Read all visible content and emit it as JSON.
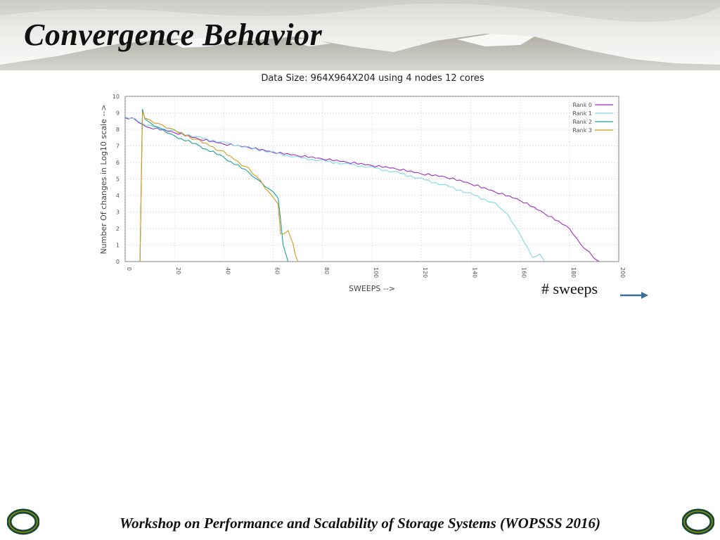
{
  "slide": {
    "title": "Convergence Behavior",
    "footer": "Workshop on Performance and Scalability of Storage Systems (WOPSSS 2016)",
    "sweeps_note": "# sweeps",
    "logo_letter": "O"
  },
  "colors": {
    "accent_green": "#154733",
    "arrow": "#3b6e9a"
  },
  "chart_data": {
    "type": "line",
    "title": "Data Size: 964X964X204 using 4 nodes 12 cores",
    "xlabel": "SWEEPS -->",
    "ylabel": "Number Of changes in Log10 scale -->",
    "xlim": [
      0,
      200
    ],
    "ylim": [
      0,
      10
    ],
    "xticks": [
      "0",
      "20",
      "40",
      "60",
      "80",
      "100",
      "120",
      "140",
      "160",
      "180",
      "200"
    ],
    "yticks": [
      "0",
      "1",
      "2",
      "3",
      "4",
      "5",
      "6",
      "7",
      "8",
      "9",
      "10"
    ],
    "grid": true,
    "legend_position": "top-right",
    "series": [
      {
        "name": "Rank 0",
        "color": "#9a2fc0",
        "x": [
          0,
          4,
          7,
          10,
          20,
          30,
          40,
          50,
          60,
          70,
          80,
          90,
          100,
          110,
          120,
          130,
          140,
          150,
          160,
          170,
          180,
          183,
          186,
          188,
          190,
          192
        ],
        "y": [
          8.7,
          8.6,
          8.3,
          8.1,
          7.8,
          7.4,
          7.1,
          6.9,
          6.6,
          6.4,
          6.2,
          6.0,
          5.8,
          5.6,
          5.3,
          5.1,
          4.7,
          4.2,
          3.7,
          2.9,
          2.0,
          1.4,
          0.8,
          0.6,
          0.2,
          0
        ]
      },
      {
        "name": "Rank 1",
        "color": "#7fd8e6",
        "x": [
          0,
          4,
          7,
          10,
          20,
          30,
          40,
          50,
          60,
          70,
          80,
          90,
          100,
          110,
          120,
          130,
          140,
          150,
          155,
          160,
          163,
          165,
          168,
          170
        ],
        "y": [
          8.7,
          8.6,
          8.3,
          8.2,
          7.9,
          7.5,
          7.2,
          6.9,
          6.6,
          6.3,
          6.1,
          5.9,
          5.7,
          5.4,
          5.0,
          4.6,
          4.1,
          3.5,
          2.8,
          1.6,
          0.8,
          0.2,
          0.4,
          0
        ]
      },
      {
        "name": "Rank 2",
        "color": "#1aa0a0",
        "x": [
          6,
          7,
          8,
          10,
          15,
          20,
          30,
          40,
          50,
          55,
          60,
          62,
          63,
          64,
          66
        ],
        "y": [
          0,
          9.2,
          8.6,
          8.4,
          8.0,
          7.6,
          7.0,
          6.3,
          5.4,
          4.8,
          4.2,
          3.8,
          2.5,
          1.0,
          0
        ]
      },
      {
        "name": "Rank 3",
        "color": "#d39a1c",
        "x": [
          6,
          7,
          8,
          10,
          15,
          20,
          30,
          40,
          50,
          55,
          60,
          62,
          63,
          66,
          68,
          69,
          70
        ],
        "y": [
          0,
          9.0,
          8.6,
          8.5,
          8.2,
          7.9,
          7.3,
          6.6,
          5.6,
          4.8,
          3.8,
          3.4,
          1.6,
          1.8,
          1.0,
          0.3,
          0
        ]
      }
    ]
  }
}
